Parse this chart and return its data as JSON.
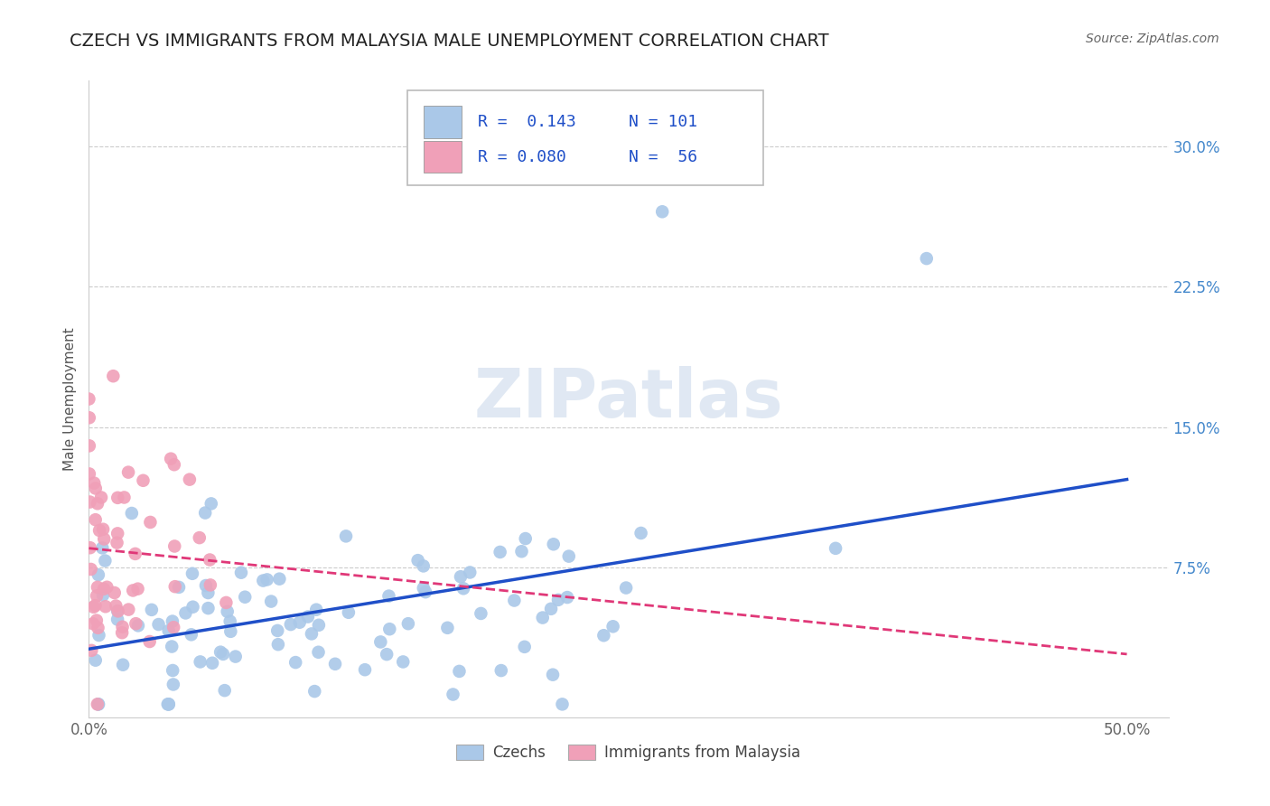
{
  "title": "CZECH VS IMMIGRANTS FROM MALAYSIA MALE UNEMPLOYMENT CORRELATION CHART",
  "source": "Source: ZipAtlas.com",
  "ylabel": "Male Unemployment",
  "xlim": [
    0.0,
    0.52
  ],
  "ylim": [
    -0.005,
    0.335
  ],
  "ytick_vals": [
    0.0,
    0.075,
    0.15,
    0.225,
    0.3
  ],
  "ytick_labels": [
    "",
    "7.5%",
    "15.0%",
    "22.5%",
    "30.0%"
  ],
  "xtick_vals": [
    0.0,
    0.125,
    0.25,
    0.375,
    0.5
  ],
  "xtick_labels": [
    "0.0%",
    "",
    "",
    "",
    "50.0%"
  ],
  "legend_r1": "R =  0.143",
  "legend_n1": "N = 101",
  "legend_r2": "R = 0.080",
  "legend_n2": "N =  56",
  "color_czech": "#aac8e8",
  "color_malaysia": "#f0a0b8",
  "color_trendline_czech": "#1f4fc8",
  "color_trendline_malaysia": "#e03878",
  "watermark": "ZIPatlas",
  "background_color": "#ffffff",
  "grid_color": "#cccccc",
  "title_fontsize": 14,
  "right_tick_color": "#4488cc",
  "N_czech": 101,
  "N_malaysia": 56,
  "R_czech": 0.143,
  "R_malaysia": 0.08
}
